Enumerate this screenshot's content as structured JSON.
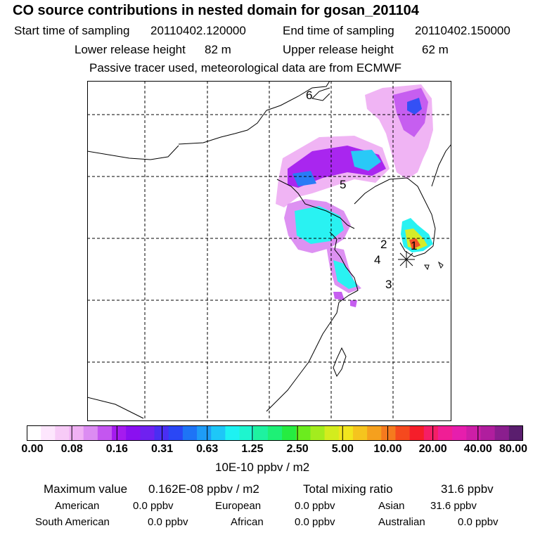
{
  "header": {
    "title": "CO  source contributions in nested domain for gosan_201104",
    "start_label": "Start time of sampling",
    "start_value": "20110402.120000",
    "end_label": "End time of sampling",
    "end_value": "20110402.150000",
    "lower_label": "Lower release height",
    "lower_value": "82 m",
    "upper_label": "Upper release height",
    "upper_value": "62 m",
    "note": "Passive tracer used, meteorological data are from ECMWF"
  },
  "map": {
    "markers": [
      "1",
      "2",
      "3",
      "4",
      "5",
      "6"
    ],
    "receptor_icon": "asterisk-receptor-icon"
  },
  "colorbar": {
    "colors": [
      "#ffffff",
      "#fde6fd",
      "#f7cbf7",
      "#f0b1f4",
      "#dc8cf2",
      "#c456f0",
      "#a51bef",
      "#8a10f0",
      "#6f21f0",
      "#4a2ef2",
      "#2a47f5",
      "#1e74f6",
      "#1e9cf7",
      "#1ec7f7",
      "#1ef2f2",
      "#1ef5cf",
      "#1ef2a0",
      "#1ef076",
      "#26ec41",
      "#6bec1e",
      "#a3ec1e",
      "#d3ec1e",
      "#f2e51e",
      "#f5c41e",
      "#f5a01e",
      "#f57a1e",
      "#f5491e",
      "#f51e2a",
      "#f51e66",
      "#f01e95",
      "#e61ead",
      "#cd1ea7",
      "#b01e9e",
      "#8a1e8e",
      "#5a1e6e"
    ],
    "tick_labels": [
      "0.00",
      "0.08",
      "0.16",
      "0.31",
      "0.63",
      "1.25",
      "2.50",
      "5.00",
      "10.00",
      "20.00",
      "40.00",
      "80.00"
    ],
    "unit": "10E-10 ppbv / m2"
  },
  "stats": {
    "max_label": "Maximum value",
    "max_value": "0.162E-08 ppbv / m2",
    "total_label": "Total mixing ratio",
    "total_value": "31.6 ppbv",
    "american_label": "American",
    "american_value": "0.0 ppbv",
    "european_label": "European",
    "european_value": "0.0 ppbv",
    "asian_label": "Asian",
    "asian_value": "31.6 ppbv",
    "south_american_label": "South American",
    "south_american_value": "0.0 ppbv",
    "african_label": "African",
    "african_value": "0.0 ppbv",
    "australian_label": "Australian",
    "australian_value": "0.0 ppbv"
  }
}
